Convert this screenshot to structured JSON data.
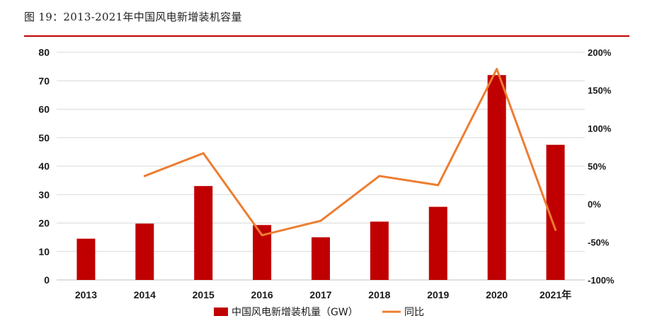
{
  "caption": "图 19：2013-2021年中国风电新增装机容量",
  "colors": {
    "bar": "#c00000",
    "line": "#ed7d31",
    "grid": "#d9d9d9",
    "rule": "#c00000"
  },
  "chart_data": {
    "type": "bar",
    "categories": [
      "2013",
      "2014",
      "2015",
      "2016",
      "2017",
      "2018",
      "2019",
      "2020",
      "2021年"
    ],
    "series": [
      {
        "name": "中国风电新增装机量（GW）",
        "type": "bar",
        "axis": "left",
        "values": [
          14.5,
          19.8,
          33.0,
          19.3,
          15.0,
          20.5,
          25.7,
          72.0,
          47.5
        ]
      },
      {
        "name": "同比",
        "type": "line",
        "axis": "right",
        "values": [
          null,
          37,
          67,
          -41,
          -22,
          37,
          25,
          178,
          -34
        ]
      }
    ],
    "ylim": [
      0,
      80
    ],
    "yticks": [
      "0",
      "10",
      "20",
      "30",
      "40",
      "50",
      "60",
      "70",
      "80"
    ],
    "y2lim": [
      -100,
      200
    ],
    "y2ticks": [
      "-100%",
      "-50%",
      "0%",
      "50%",
      "100%",
      "150%",
      "200%"
    ],
    "grid": true,
    "legend": "bottom"
  }
}
